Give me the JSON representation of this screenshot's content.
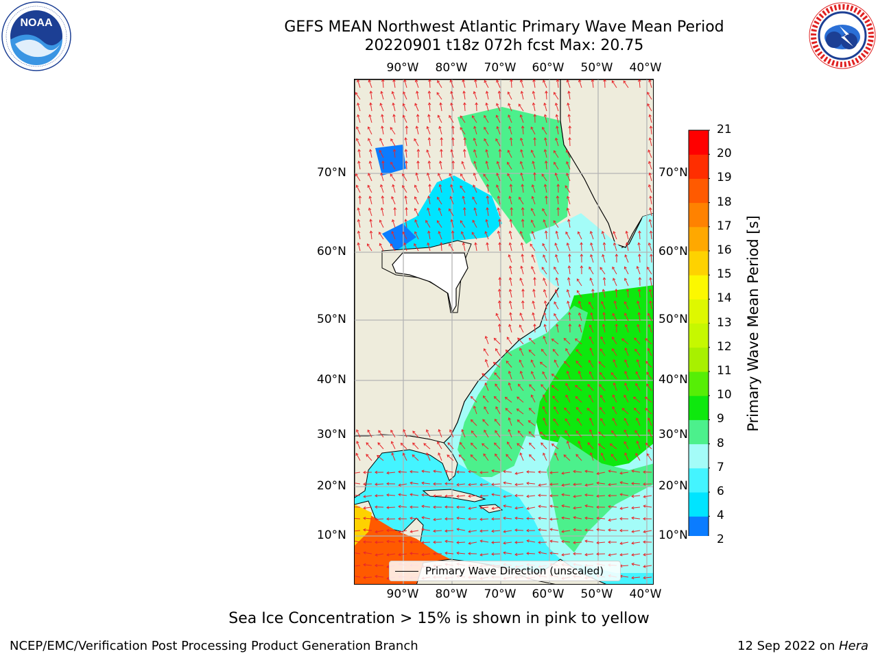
{
  "header": {
    "title_line1": "GEFS MEAN Northwest Atlantic Primary Wave Mean Period",
    "title_line2": "20220901 t18z 072h fcst   Max: 20.75"
  },
  "logos": {
    "left": "NOAA",
    "left_ring": "NATIONAL OCEANIC AND ATMOSPHERIC ADMINISTRATION · U.S. DEPARTMENT OF COMMERCE",
    "right_ring": "NATIONAL WEATHER SERVICE"
  },
  "map": {
    "lon_labels": [
      "90°W",
      "80°W",
      "70°W",
      "60°W",
      "50°W",
      "40°W"
    ],
    "lat_labels": [
      "70°N",
      "60°N",
      "50°N",
      "40°N",
      "30°N",
      "20°N",
      "10°N"
    ],
    "legend_text": "Primary Wave Direction (unscaled)",
    "colors": {
      "land": "#eeecdc",
      "no_data": "#ffffff",
      "arrow": "#e8262a",
      "grid": "#b4b4b4"
    }
  },
  "colorbar": {
    "title": "Primary Wave Mean Period [s]",
    "ticks": [
      "2",
      "4",
      "6",
      "7",
      "8",
      "9",
      "10",
      "11",
      "12",
      "13",
      "14",
      "15",
      "16",
      "17",
      "18",
      "19",
      "20",
      "21"
    ],
    "colors": [
      "#0b7cff",
      "#00e4ff",
      "#44f4ff",
      "#a4fcf8",
      "#4cf08c",
      "#0ee80e",
      "#56ee06",
      "#a8f000",
      "#c6f800",
      "#def800",
      "#fcf800",
      "#fed200",
      "#ffa800",
      "#ff8200",
      "#ff5a00",
      "#ff2e00",
      "#ff0000"
    ],
    "under_color": "#1000ff"
  },
  "footer": {
    "note": "Sea Ice Concentration > 15% is shown in pink to yellow",
    "credit": "NCEP/EMC/Verification Post Processing Product Generation Branch",
    "date": "12 Sep 2022 on ",
    "machine": "Hera"
  }
}
